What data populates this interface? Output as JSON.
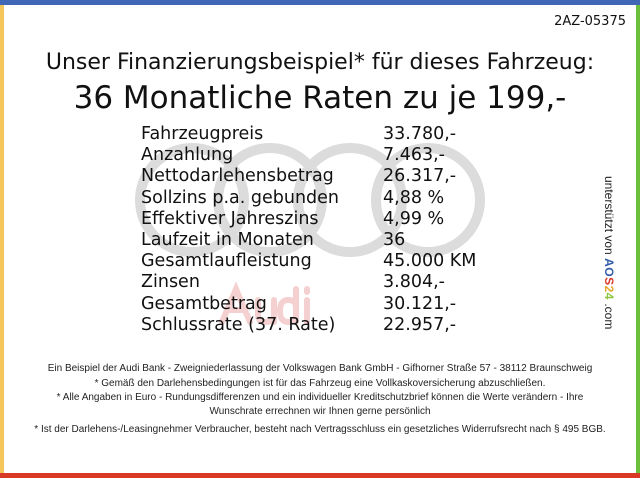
{
  "colors": {
    "top": "#3f67b5",
    "left": "#f5c75a",
    "right": "#6cbf3a",
    "bottom": "#d93a26",
    "watermark_rings": "#d9d9d9",
    "watermark_text": "#f3c9c9"
  },
  "code": "2AZ-05375",
  "headline": "Unser Finanzierungsbeispiel* für dieses Fahrzeug:",
  "subheadline": "36 Monatliche Raten zu je 199,-",
  "watermark": {
    "logo": "Audi rings",
    "text": "Audi"
  },
  "rows": [
    {
      "label": "Fahrzeugpreis",
      "value": "33.780,-"
    },
    {
      "label": "Anzahlung",
      "value": "7.463,-"
    },
    {
      "label": "Nettodarlehensbetrag",
      "value": "26.317,-"
    },
    {
      "label": "Sollzins p.a. gebunden",
      "value": "4,88 %"
    },
    {
      "label": "Effektiver Jahreszins",
      "value": "4,99 %"
    },
    {
      "label": "Laufzeit in Monaten",
      "value": "36"
    },
    {
      "label": "Gesamtlaufleistung",
      "value": "45.000 KM"
    },
    {
      "label": "Zinsen",
      "value": "3.804,-"
    },
    {
      "label": "Gesamtbetrag",
      "value": "30.121,-"
    },
    {
      "label": "Schlussrate (37. Rate)",
      "value": "22.957,-"
    }
  ],
  "side": {
    "text": "unterstützt von",
    "logo": [
      "A",
      "O",
      "S",
      "2",
      "4"
    ],
    "suffix": ".com"
  },
  "footer": [
    "Ein Beispiel der Audi Bank -  Zweigniederlassung der Volkswagen Bank GmbH - Gifhorner Straße 57 - 38112 Braunschweig",
    "* Gemäß den Darlehensbedingungen ist für das Fahrzeug eine Vollkaskoversicherung abzuschließen.",
    "* Alle Angaben in Euro - Rundungsdifferenzen und ein individueller Kreditschutzbrief können die Werte verändern - Ihre Wunschrate errechnen wir Ihnen gerne persönlich",
    "* Ist der Darlehens-/Leasingnehmer Verbraucher, besteht nach Vertragsschluss ein gesetzliches Widerrufsrecht nach § 495 BGB."
  ]
}
